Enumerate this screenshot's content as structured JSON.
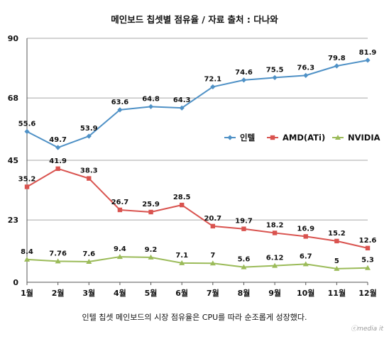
{
  "chart_data": {
    "type": "line",
    "title": "메인보드 칩셋별 점유율 / 자료 출처 : 다나와",
    "caption": "인텔 칩셋 메인보드의 시장 점유율은 CPU를 따라 순조롭게 성장했다.",
    "watermark": "ⓒmedia it",
    "categories": [
      "1월",
      "2월",
      "3월",
      "4월",
      "5월",
      "6월",
      "7월",
      "8월",
      "9월",
      "10월",
      "11월",
      "12월"
    ],
    "y_ticks": [
      "0",
      "23",
      "45",
      "68",
      "90"
    ],
    "ylim": [
      0,
      90
    ],
    "grid": "horizontal",
    "legend_position": "right",
    "series": [
      {
        "name": "인텔",
        "color": "#4f91c6",
        "marker": "diamond",
        "values": [
          55.6,
          49.7,
          53.9,
          63.6,
          64.8,
          64.3,
          72.1,
          74.6,
          75.5,
          76.3,
          79.8,
          81.9
        ],
        "labels": [
          "55.6",
          "49.7",
          "53.9",
          "63.6",
          "64.8",
          "64.3",
          "72.1",
          "74.6",
          "75.5",
          "76.3",
          "79.8",
          "81.9"
        ]
      },
      {
        "name": "AMD(ATi)",
        "color": "#d9534f",
        "marker": "square",
        "values": [
          35.2,
          41.9,
          38.3,
          26.7,
          25.9,
          28.5,
          20.7,
          19.7,
          18.2,
          16.9,
          15.2,
          12.6
        ],
        "labels": [
          "35.2",
          "41.9",
          "38.3",
          "26.7",
          "25.9",
          "28.5",
          "20.7",
          "19.7",
          "18.2",
          "16.9",
          "15.2",
          "12.6"
        ]
      },
      {
        "name": "NVIDIA",
        "color": "#9bbb59",
        "marker": "triangle",
        "values": [
          8.4,
          7.76,
          7.6,
          9.4,
          9.2,
          7.1,
          7,
          5.6,
          6.12,
          6.7,
          5,
          5.3
        ],
        "labels": [
          "8.4",
          "7.76",
          "7.6",
          "9.4",
          "9.2",
          "7.1",
          "7",
          "5.6",
          "6.12",
          "6.7",
          "5",
          "5.3"
        ]
      }
    ]
  }
}
